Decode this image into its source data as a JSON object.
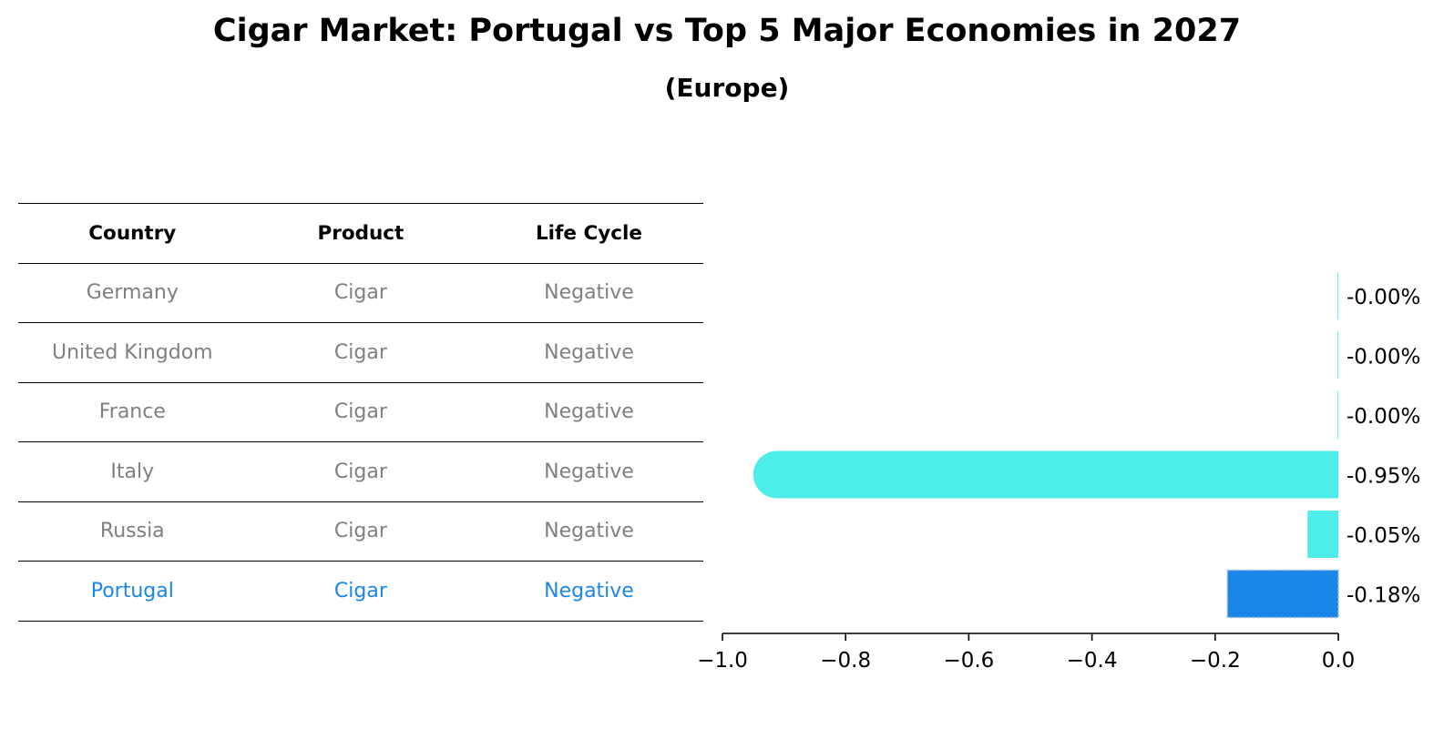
{
  "title": "Cigar Market: Portugal vs Top 5 Major Economies in 2027",
  "subtitle": "(Europe)",
  "table": {
    "headers": [
      "Country",
      "Product",
      "Life Cycle"
    ],
    "rows": [
      {
        "country": "Germany",
        "product": "Cigar",
        "life_cycle": "Negative",
        "highlight": false
      },
      {
        "country": "United Kingdom",
        "product": "Cigar",
        "life_cycle": "Negative",
        "highlight": false
      },
      {
        "country": "France",
        "product": "Cigar",
        "life_cycle": "Negative",
        "highlight": false
      },
      {
        "country": "Italy",
        "product": "Cigar",
        "life_cycle": "Negative",
        "highlight": false
      },
      {
        "country": "Russia",
        "product": "Cigar",
        "life_cycle": "Negative",
        "highlight": false
      },
      {
        "country": "Portugal",
        "product": "Cigar",
        "life_cycle": "Negative",
        "highlight": true
      }
    ]
  },
  "colors": {
    "bar_default": "#4deeea",
    "bar_highlight": "#1a86e8",
    "highlight_text": "#1a86e8",
    "muted_text": "#808080"
  },
  "chart_data": {
    "type": "bar",
    "orientation": "horizontal",
    "categories": [
      "Germany",
      "United Kingdom",
      "France",
      "Italy",
      "Russia",
      "Portugal"
    ],
    "values": [
      -0.0,
      -0.0,
      -0.0,
      -0.95,
      -0.05,
      -0.18
    ],
    "value_labels": [
      "-0.00%",
      "-0.00%",
      "-0.00%",
      "-0.95%",
      "-0.05%",
      "-0.18%"
    ],
    "highlight_category": "Portugal",
    "xlim": [
      -1.0,
      0.0
    ],
    "xticks": [
      -1.0,
      -0.8,
      -0.6,
      -0.4,
      -0.2,
      0.0
    ],
    "xtick_labels": [
      "−1.0",
      "−0.8",
      "−0.6",
      "−0.4",
      "−0.2",
      "0.0"
    ],
    "xlabel": "",
    "ylabel": "",
    "grid": false
  }
}
